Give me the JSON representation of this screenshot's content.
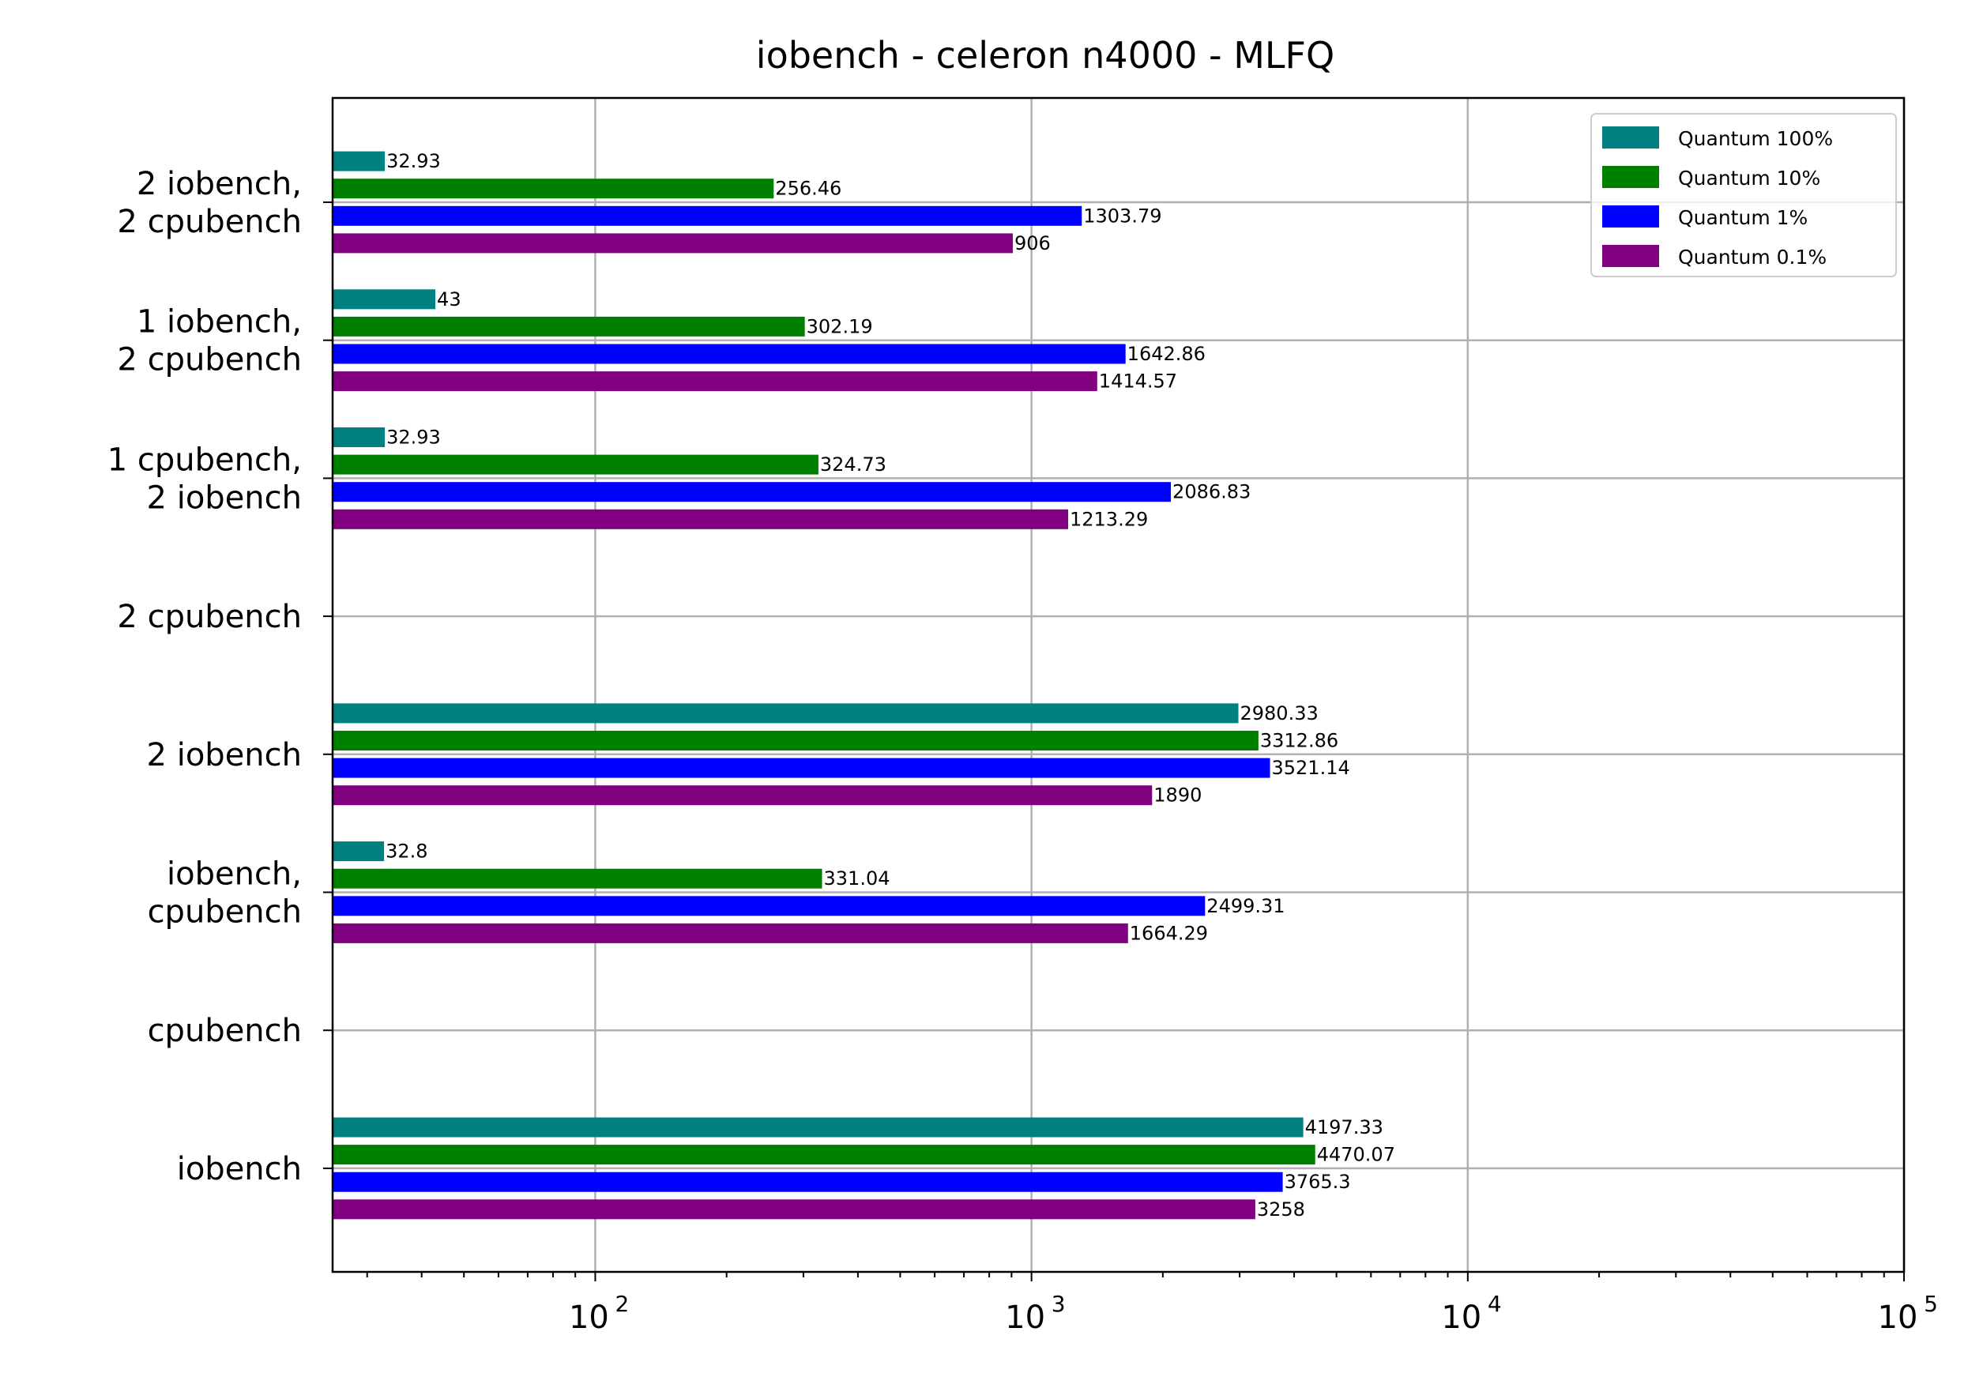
{
  "chart_data": {
    "type": "bar",
    "orientation": "horizontal",
    "title": "iobench - celeron n4000 - MLFQ",
    "xscale": "log",
    "xlim": [
      25,
      100000
    ],
    "xticks": [
      {
        "base": "10",
        "exp": "2",
        "value": 100
      },
      {
        "base": "10",
        "exp": "3",
        "value": 1000
      },
      {
        "base": "10",
        "exp": "4",
        "value": 10000
      },
      {
        "base": "10",
        "exp": "5",
        "value": 100000
      }
    ],
    "grid": true,
    "legend_position": "top-right",
    "categories": [
      [
        "2 iobench,",
        "2 cpubench"
      ],
      [
        "1 iobench,",
        "2 cpubench"
      ],
      [
        "1 cpubench,",
        "2 iobench"
      ],
      [
        "2 cpubench"
      ],
      [
        "2 iobench"
      ],
      [
        "iobench,",
        "cpubench"
      ],
      [
        "cpubench"
      ],
      [
        "iobench"
      ]
    ],
    "series": [
      {
        "name": "Quantum 100%",
        "color": "#008080",
        "values": [
          32.93,
          43,
          32.93,
          null,
          2980.33,
          32.8,
          null,
          4197.33
        ],
        "labels": [
          "32.93",
          "43",
          "32.93",
          "",
          "2980.33",
          "32.8",
          "",
          "4197.33"
        ]
      },
      {
        "name": "Quantum 10%",
        "color": "#008000",
        "values": [
          256.46,
          302.19,
          324.73,
          null,
          3312.86,
          331.04,
          null,
          4470.07
        ],
        "labels": [
          "256.46",
          "302.19",
          "324.73",
          "",
          "3312.86",
          "331.04",
          "",
          "4470.07"
        ]
      },
      {
        "name": "Quantum 1%",
        "color": "#0000ff",
        "values": [
          1303.79,
          1642.86,
          2086.83,
          null,
          3521.14,
          2499.31,
          null,
          3765.3
        ],
        "labels": [
          "1303.79",
          "1642.86",
          "2086.83",
          "",
          "3521.14",
          "2499.31",
          "",
          "3765.3"
        ]
      },
      {
        "name": "Quantum 0.1%",
        "color": "#800080",
        "values": [
          906,
          1414.57,
          1213.29,
          null,
          1890,
          1664.29,
          null,
          3258
        ],
        "labels": [
          "906",
          "1414.57",
          "1213.29",
          "",
          "1890",
          "1664.29",
          "",
          "3258"
        ]
      }
    ]
  }
}
